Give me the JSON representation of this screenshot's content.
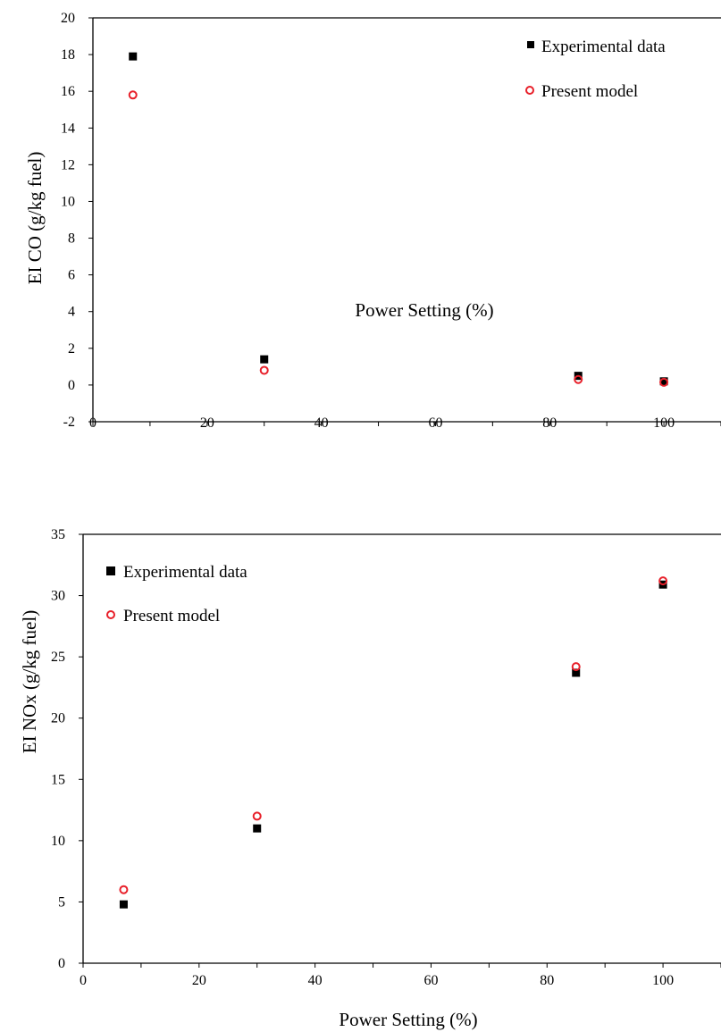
{
  "chart_data": [
    {
      "type": "scatter",
      "title": "",
      "xlabel": "Power Setting (%)",
      "ylabel": "EI CO (g/kg fuel)",
      "xlim": [
        0,
        110
      ],
      "ylim": [
        -2,
        20
      ],
      "xticks": [
        "0",
        "20",
        "40",
        "60",
        "80",
        "100"
      ],
      "yticks": [
        "-2",
        "0",
        "2",
        "4",
        "6",
        "8",
        "10",
        "12",
        "14",
        "16",
        "18",
        "20"
      ],
      "grid": false,
      "legend_position": "top-right",
      "series": [
        {
          "name": "Experimental data",
          "marker": "filled-square",
          "color": "#000000",
          "x": [
            7,
            30,
            85,
            100
          ],
          "y": [
            17.9,
            1.4,
            0.5,
            0.2
          ]
        },
        {
          "name": "Present model",
          "marker": "open-circle",
          "color": "#e8202a",
          "x": [
            7,
            30,
            85,
            100
          ],
          "y": [
            15.8,
            0.8,
            0.3,
            0.15
          ]
        }
      ]
    },
    {
      "type": "scatter",
      "title": "",
      "xlabel": "Power Setting (%)",
      "ylabel": "EI NOx (g/kg fuel)",
      "xlim": [
        0,
        110
      ],
      "ylim": [
        0,
        35
      ],
      "xticks": [
        "0",
        "20",
        "40",
        "60",
        "80",
        "100"
      ],
      "yticks": [
        "0",
        "5",
        "10",
        "15",
        "20",
        "25",
        "30",
        "35"
      ],
      "grid": false,
      "legend_position": "top-left",
      "series": [
        {
          "name": "Experimental data",
          "marker": "filled-square",
          "color": "#000000",
          "x": [
            7,
            30,
            85,
            100
          ],
          "y": [
            4.8,
            11.0,
            23.7,
            30.9
          ]
        },
        {
          "name": "Present model",
          "marker": "open-circle",
          "color": "#e8202a",
          "x": [
            7,
            30,
            85,
            100
          ],
          "y": [
            6.0,
            12.0,
            24.2,
            31.2
          ]
        }
      ]
    }
  ]
}
